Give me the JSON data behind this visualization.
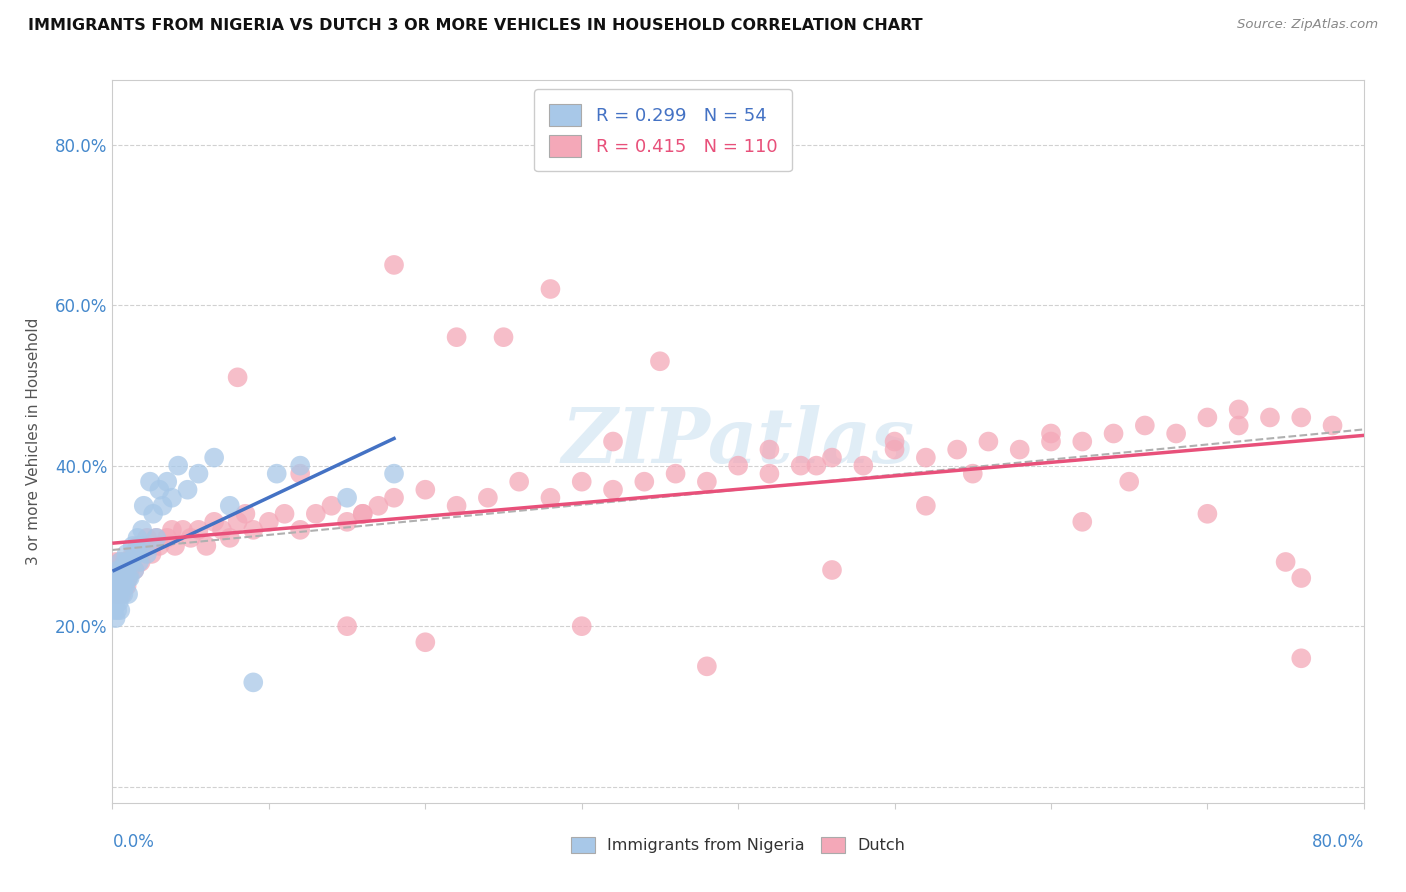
{
  "title": "IMMIGRANTS FROM NIGERIA VS DUTCH 3 OR MORE VEHICLES IN HOUSEHOLD CORRELATION CHART",
  "source": "Source: ZipAtlas.com",
  "ylabel": "3 or more Vehicles in Household",
  "xlim": [
    0.0,
    0.8
  ],
  "ylim": [
    -0.02,
    0.88
  ],
  "yticks": [
    0.0,
    0.2,
    0.4,
    0.6,
    0.8
  ],
  "ytick_labels": [
    "",
    "20.0%",
    "40.0%",
    "60.0%",
    "80.0%"
  ],
  "xtick_left": "0.0%",
  "xtick_right": "80.0%",
  "legend_r1": "R = 0.299",
  "legend_n1": "N = 54",
  "legend_r2": "R = 0.415",
  "legend_n2": "N = 110",
  "color_nigeria": "#a8c8e8",
  "color_dutch": "#f4a8b8",
  "line_color_nigeria": "#4472c4",
  "line_color_dutch": "#e8507a",
  "line_color_trendline": "#b0b0b0",
  "background_color": "#ffffff",
  "nigeria_x": [
    0.001,
    0.001,
    0.002,
    0.002,
    0.002,
    0.003,
    0.003,
    0.003,
    0.004,
    0.004,
    0.004,
    0.005,
    0.005,
    0.005,
    0.005,
    0.006,
    0.006,
    0.007,
    0.007,
    0.008,
    0.008,
    0.009,
    0.009,
    0.01,
    0.01,
    0.01,
    0.011,
    0.012,
    0.013,
    0.014,
    0.015,
    0.016,
    0.017,
    0.018,
    0.019,
    0.02,
    0.022,
    0.024,
    0.026,
    0.028,
    0.03,
    0.032,
    0.035,
    0.038,
    0.042,
    0.048,
    0.055,
    0.065,
    0.075,
    0.09,
    0.105,
    0.12,
    0.15,
    0.18
  ],
  "nigeria_y": [
    0.24,
    0.22,
    0.21,
    0.25,
    0.23,
    0.24,
    0.22,
    0.26,
    0.25,
    0.23,
    0.27,
    0.24,
    0.26,
    0.22,
    0.28,
    0.25,
    0.27,
    0.24,
    0.26,
    0.28,
    0.25,
    0.27,
    0.29,
    0.26,
    0.24,
    0.28,
    0.26,
    0.28,
    0.3,
    0.27,
    0.29,
    0.31,
    0.28,
    0.3,
    0.32,
    0.35,
    0.29,
    0.38,
    0.34,
    0.31,
    0.37,
    0.35,
    0.38,
    0.36,
    0.4,
    0.37,
    0.39,
    0.41,
    0.35,
    0.13,
    0.39,
    0.4,
    0.36,
    0.39
  ],
  "dutch_x": [
    0.001,
    0.002,
    0.002,
    0.003,
    0.003,
    0.004,
    0.004,
    0.005,
    0.005,
    0.006,
    0.006,
    0.007,
    0.007,
    0.008,
    0.008,
    0.009,
    0.009,
    0.01,
    0.01,
    0.011,
    0.012,
    0.013,
    0.014,
    0.015,
    0.016,
    0.018,
    0.02,
    0.022,
    0.025,
    0.028,
    0.03,
    0.035,
    0.038,
    0.04,
    0.045,
    0.05,
    0.055,
    0.06,
    0.065,
    0.07,
    0.075,
    0.08,
    0.085,
    0.09,
    0.1,
    0.11,
    0.12,
    0.13,
    0.14,
    0.15,
    0.16,
    0.17,
    0.18,
    0.2,
    0.22,
    0.24,
    0.26,
    0.28,
    0.3,
    0.32,
    0.34,
    0.36,
    0.38,
    0.4,
    0.42,
    0.44,
    0.46,
    0.48,
    0.5,
    0.52,
    0.54,
    0.56,
    0.58,
    0.6,
    0.62,
    0.64,
    0.66,
    0.68,
    0.7,
    0.72,
    0.74,
    0.76,
    0.78,
    0.3,
    0.15,
    0.2,
    0.38,
    0.46,
    0.25,
    0.35,
    0.45,
    0.55,
    0.65,
    0.75,
    0.18,
    0.28,
    0.5,
    0.6,
    0.7,
    0.76,
    0.08,
    0.12,
    0.16,
    0.22,
    0.32,
    0.42,
    0.52,
    0.62,
    0.72,
    0.76
  ],
  "dutch_y": [
    0.26,
    0.24,
    0.28,
    0.25,
    0.27,
    0.24,
    0.26,
    0.25,
    0.28,
    0.26,
    0.24,
    0.27,
    0.25,
    0.26,
    0.28,
    0.25,
    0.27,
    0.26,
    0.28,
    0.27,
    0.28,
    0.29,
    0.27,
    0.29,
    0.3,
    0.28,
    0.3,
    0.31,
    0.29,
    0.31,
    0.3,
    0.31,
    0.32,
    0.3,
    0.32,
    0.31,
    0.32,
    0.3,
    0.33,
    0.32,
    0.31,
    0.33,
    0.34,
    0.32,
    0.33,
    0.34,
    0.32,
    0.34,
    0.35,
    0.33,
    0.34,
    0.35,
    0.36,
    0.37,
    0.35,
    0.36,
    0.38,
    0.36,
    0.38,
    0.37,
    0.38,
    0.39,
    0.38,
    0.4,
    0.39,
    0.4,
    0.41,
    0.4,
    0.42,
    0.41,
    0.42,
    0.43,
    0.42,
    0.44,
    0.43,
    0.44,
    0.45,
    0.44,
    0.46,
    0.45,
    0.46,
    0.46,
    0.45,
    0.2,
    0.2,
    0.18,
    0.15,
    0.27,
    0.56,
    0.53,
    0.4,
    0.39,
    0.38,
    0.28,
    0.65,
    0.62,
    0.43,
    0.43,
    0.34,
    0.26,
    0.51,
    0.39,
    0.34,
    0.56,
    0.43,
    0.42,
    0.35,
    0.33,
    0.47,
    0.16
  ]
}
